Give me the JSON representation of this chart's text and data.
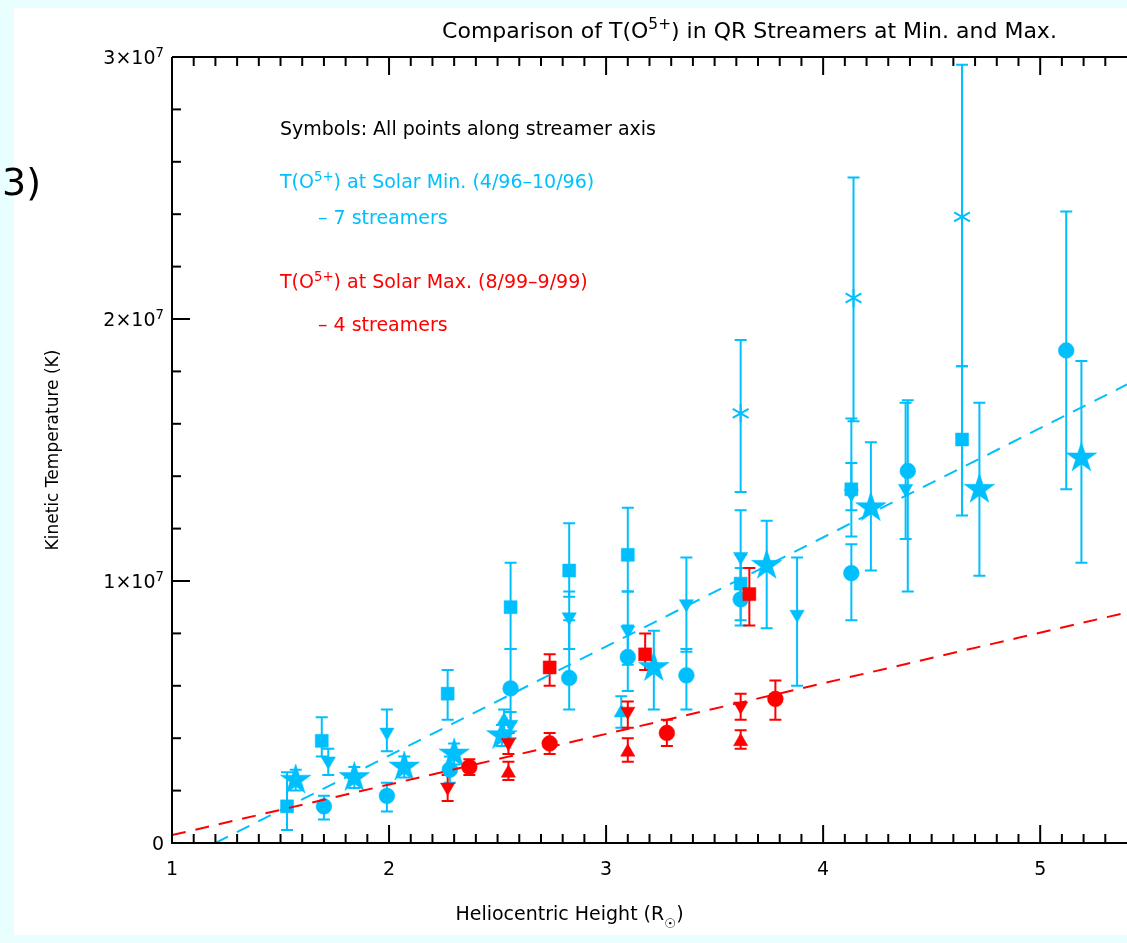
{
  "chart_data": {
    "type": "scatter",
    "title": "Comparison of T(O$^{5+}$) in QR Streamers at Min. and Max.",
    "xlabel": "Heliocentric Height (R$_{☉}$)",
    "ylabel": "Kinetic Temperature (K)",
    "xlim": [
      1,
      5.4
    ],
    "ylim": [
      0,
      30000000
    ],
    "xticks": [
      1,
      {
        "value": 1.1,
        "label": null
      },
      {
        "value": 1.2,
        "label": null
      },
      {
        "value": 1.3,
        "label": null
      },
      {
        "value": 1.4,
        "label": null
      },
      {
        "value": 1.5,
        "label": null
      },
      {
        "value": 1.6,
        "label": null
      },
      {
        "value": 1.7,
        "label": null
      },
      {
        "value": 1.8,
        "label": null
      },
      {
        "value": 1.9,
        "label": null
      },
      2,
      {
        "value": 2.1,
        "label": null
      },
      {
        "value": 2.2,
        "label": null
      },
      {
        "value": 2.3,
        "label": null
      },
      {
        "value": 2.4,
        "label": null
      },
      {
        "value": 2.5,
        "label": null
      },
      {
        "value": 2.6,
        "label": null
      },
      {
        "value": 2.7,
        "label": null
      },
      {
        "value": 2.8,
        "label": null
      },
      {
        "value": 2.9,
        "label": null
      },
      3,
      {
        "value": 3.1,
        "label": null
      },
      {
        "value": 3.2,
        "label": null
      },
      {
        "value": 3.3,
        "label": null
      },
      {
        "value": 3.4,
        "label": null
      },
      {
        "value": 3.5,
        "label": null
      },
      {
        "value": 3.6,
        "label": null
      },
      {
        "value": 3.7,
        "label": null
      },
      {
        "value": 3.8,
        "label": null
      },
      {
        "value": 3.9,
        "label": null
      },
      4,
      {
        "value": 4.1,
        "label": null
      },
      {
        "value": 4.2,
        "label": null
      },
      {
        "value": 4.3,
        "label": null
      },
      {
        "value": 4.4,
        "label": null
      },
      {
        "value": 4.5,
        "label": null
      },
      {
        "value": 4.6,
        "label": null
      },
      {
        "value": 4.7,
        "label": null
      },
      {
        "value": 4.8,
        "label": null
      },
      {
        "value": 4.9,
        "label": null
      },
      5,
      {
        "value": 5.1,
        "label": null
      },
      {
        "value": 5.2,
        "label": null
      },
      {
        "value": 5.3,
        "label": null
      }
    ],
    "yticks": [
      0,
      {
        "value": 2000000,
        "label": null
      },
      {
        "value": 4000000,
        "label": null
      },
      {
        "value": 6000000,
        "label": null
      },
      {
        "value": 8000000,
        "label": null
      },
      {
        "value": 10000000,
        "label": "1×10$^{7}$"
      },
      {
        "value": 12000000,
        "label": null
      },
      {
        "value": 14000000,
        "label": null
      },
      {
        "value": 16000000,
        "label": null
      },
      {
        "value": 18000000,
        "label": null
      },
      {
        "value": 20000000,
        "label": "2×10$^{7}$"
      },
      {
        "value": 22000000,
        "label": null
      },
      {
        "value": 24000000,
        "label": null
      },
      {
        "value": 26000000,
        "label": null
      },
      {
        "value": 28000000,
        "label": null
      },
      {
        "value": 30000000,
        "label": "3×10$^{7}$"
      }
    ],
    "annotations": [
      "Symbols:  All points along streamer axis",
      "T(O$^{5+}$) at Solar Min. (4/96–10/96)",
      "– 7 streamers",
      "T(O$^{5+}$) at Solar Max. (8/99–9/99)",
      "– 4 streamers",
      "3)"
    ],
    "series": [
      {
        "color": "#00bfff",
        "marker": "square",
        "x": [
          1.53,
          1.69,
          2.27,
          2.56,
          2.83,
          3.1,
          3.62,
          4.13,
          4.64
        ],
        "values": [
          1400000,
          3900000,
          5700000,
          9000000,
          10400000,
          11000000,
          9900000,
          13500000,
          15400000
        ],
        "errors": [
          [
            500000,
            2700000
          ],
          [
            3300000,
            4800000
          ],
          [
            4700000,
            6600000
          ],
          [
            7400000,
            10700000
          ],
          [
            9400000,
            12200000
          ],
          [
            9600000,
            12800000
          ],
          [
            8500000,
            11000000
          ],
          [
            12700000,
            14500000
          ],
          [
            12500000,
            18200000
          ]
        ]
      },
      {
        "color": "#00bfff",
        "marker": "circle",
        "x": [
          1.7,
          1.99,
          2.28,
          2.56,
          2.83,
          3.1,
          3.37,
          3.62,
          4.13,
          4.39,
          5.12
        ],
        "values": [
          1400000,
          1800000,
          2800000,
          5900000,
          6300000,
          7100000,
          6400000,
          9300000,
          10300000,
          14200000,
          18800000
        ],
        "errors": [
          [
            900000,
            1800000
          ],
          [
            1200000,
            2300000
          ],
          [
            2300000,
            3300000
          ],
          [
            4600000,
            7400000
          ],
          [
            5100000,
            8500000
          ],
          [
            5800000,
            8300000
          ],
          [
            5100000,
            7400000
          ],
          [
            8300000,
            10500000
          ],
          [
            8500000,
            11400000
          ],
          [
            9600000,
            16900000
          ],
          [
            13500000,
            24100000
          ]
        ]
      },
      {
        "color": "#00bfff",
        "marker": "triangle-down",
        "x": [
          1.72,
          1.99,
          2.56,
          2.83,
          3.1,
          3.37,
          3.62,
          3.88,
          4.13,
          4.38
        ],
        "values": [
          3100000,
          4200000,
          4500000,
          8600000,
          8100000,
          9100000,
          10900000,
          8700000,
          13300000,
          13500000
        ],
        "errors": [
          [
            2600000,
            3600000
          ],
          [
            3500000,
            5100000
          ],
          [
            4000000,
            5000000
          ],
          [
            7400000,
            9600000
          ],
          [
            6800000,
            9600000
          ],
          [
            7300000,
            10900000
          ],
          [
            9400000,
            12700000
          ],
          [
            6000000,
            10900000
          ],
          [
            11700000,
            16200000
          ],
          [
            11600000,
            16800000
          ]
        ]
      },
      {
        "color": "#00bfff",
        "marker": "triangle",
        "x": [
          2.53,
          3.07
        ],
        "values": [
          4700000,
          5000000
        ],
        "errors": [
          [
            4300000,
            5100000
          ],
          [
            4400000,
            5600000
          ]
        ]
      },
      {
        "color": "#00bfff",
        "marker": "star",
        "x": [
          1.57,
          1.84,
          2.07,
          2.3,
          2.52,
          3.22,
          3.74,
          4.22,
          4.72,
          5.19
        ],
        "values": [
          2400000,
          2500000,
          2900000,
          3400000,
          4100000,
          6700000,
          10600000,
          12800000,
          13500000,
          14700000
        ],
        "errors": [
          [
            2000000,
            2800000
          ],
          [
            2100000,
            2900000
          ],
          [
            2500000,
            3300000
          ],
          [
            3000000,
            3800000
          ],
          [
            3700000,
            4500000
          ],
          [
            5100000,
            8100000
          ],
          [
            8200000,
            12300000
          ],
          [
            10400000,
            15300000
          ],
          [
            10200000,
            16800000
          ],
          [
            10700000,
            18400000
          ]
        ]
      },
      {
        "color": "#00bfff",
        "marker": "cross",
        "x": [
          3.62,
          4.14,
          4.64
        ],
        "values": [
          16400000,
          20800000,
          23900000
        ],
        "errors": [
          [
            13400000,
            19200000
          ],
          [
            16100000,
            25400000
          ],
          [
            18200000,
            29700000
          ]
        ]
      },
      {
        "color": "#ff0000",
        "marker": "square",
        "x": [
          2.74,
          3.18,
          3.66
        ],
        "values": [
          6700000,
          7200000,
          9500000
        ],
        "errors": [
          [
            6000000,
            7200000
          ],
          [
            6600000,
            8000000
          ],
          [
            8300000,
            10500000
          ]
        ]
      },
      {
        "color": "#ff0000",
        "marker": "circle",
        "x": [
          2.37,
          2.74,
          3.28,
          3.78
        ],
        "values": [
          2900000,
          3800000,
          4200000,
          5500000
        ],
        "errors": [
          [
            2600000,
            3200000
          ],
          [
            3400000,
            4200000
          ],
          [
            3700000,
            4700000
          ],
          [
            4700000,
            6200000
          ]
        ]
      },
      {
        "color": "#ff0000",
        "marker": "triangle-down",
        "x": [
          2.27,
          2.55,
          3.1,
          3.62
        ],
        "values": [
          2100000,
          3800000,
          5000000,
          5200000
        ],
        "errors": [
          [
            1600000,
            2600000
          ],
          [
            3400000,
            4200000
          ],
          [
            4400000,
            5400000
          ],
          [
            4700000,
            5700000
          ]
        ]
      },
      {
        "color": "#ff0000",
        "marker": "triangle",
        "x": [
          2.55,
          3.1,
          3.62
        ],
        "values": [
          2700000,
          3500000,
          3900000
        ],
        "errors": [
          [
            2400000,
            3100000
          ],
          [
            3100000,
            4000000
          ],
          [
            3600000,
            4300000
          ]
        ]
      },
      {
        "type": "line",
        "color": "#00bfff",
        "line_style": "dashed",
        "marker": "none",
        "x": [
          1.2,
          5.4
        ],
        "values": [
          0,
          17500000
        ]
      },
      {
        "type": "line",
        "color": "#ff0000",
        "line_style": "dashed",
        "marker": "none",
        "x": [
          1,
          5.4
        ],
        "values": [
          300000,
          8800000
        ]
      }
    ]
  }
}
